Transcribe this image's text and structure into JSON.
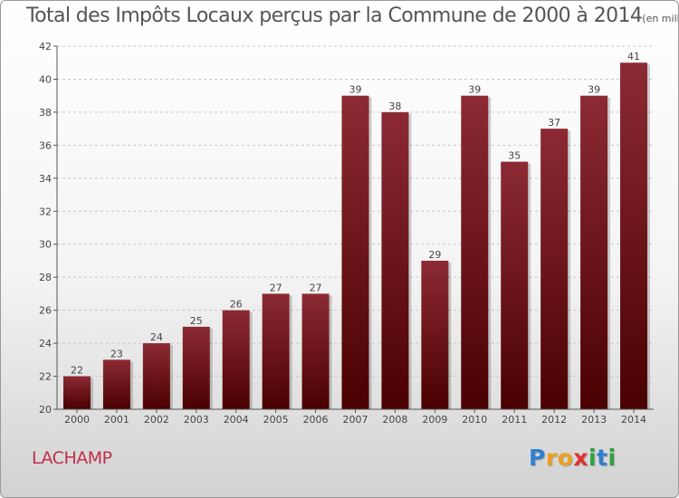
{
  "chart_data": {
    "type": "bar",
    "title": "Total des Impôts Locaux perçus par la Commune de 2000 à 2014",
    "subtitle": "(en milliers d'€)",
    "categories": [
      "2000",
      "2001",
      "2002",
      "2003",
      "2004",
      "2005",
      "2006",
      "2007",
      "2008",
      "2009",
      "2010",
      "2011",
      "2012",
      "2013",
      "2014"
    ],
    "values": [
      22,
      23,
      24,
      25,
      26,
      27,
      27,
      39,
      38,
      29,
      39,
      35,
      37,
      39,
      41
    ],
    "ylim": [
      20,
      42
    ],
    "yticks": [
      20,
      22,
      24,
      26,
      28,
      30,
      32,
      34,
      36,
      38,
      40,
      42
    ],
    "grid": true,
    "bar_color_top": "#8c2a34",
    "bar_color_bottom": "#4a0000"
  },
  "commune": "LACHAMP",
  "brand": {
    "name": "Proxiti",
    "letters": [
      {
        "ch": "P",
        "color": "#2f7fd0"
      },
      {
        "ch": "r",
        "color": "#f0a020"
      },
      {
        "ch": "o",
        "color": "#f0a020"
      },
      {
        "ch": "x",
        "color": "#e03030"
      },
      {
        "ch": "i",
        "color": "#2fa040"
      },
      {
        "ch": "t",
        "color": "#2f7fd0"
      },
      {
        "ch": "i",
        "color": "#2fa040"
      }
    ]
  }
}
